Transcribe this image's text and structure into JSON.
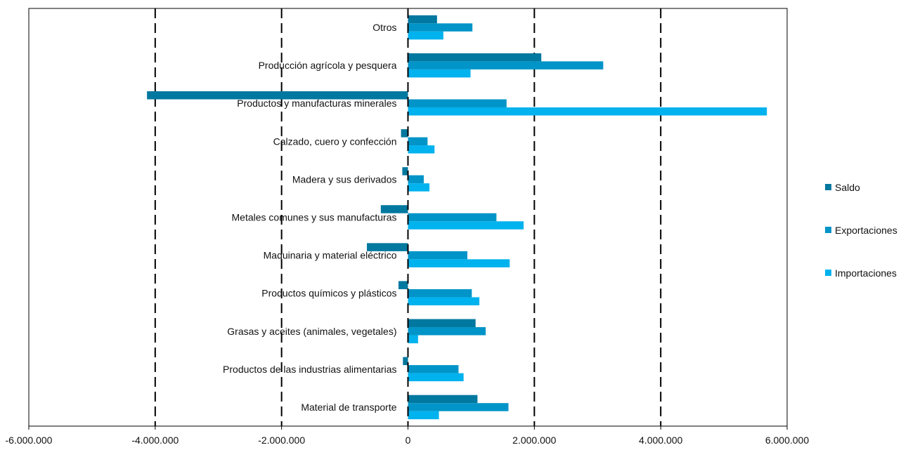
{
  "chart_data": {
    "type": "bar",
    "orientation": "horizontal",
    "categories": [
      "Otros",
      "Producción agrícola y pesquera",
      "Productos y manufacturas minerales",
      "Calzado, cuero y confección",
      "Madera y sus derivados",
      "Metales comunes y sus manufacturas",
      "Maquinaria y material eléctrico",
      "Productos químicos y plásticos",
      "Grasas y aceites (animales, vegetales)",
      "Productos de las industrias alimentarias",
      "Material de transporte"
    ],
    "series": [
      {
        "name": "Saldo",
        "color": "#00789f",
        "values": [
          460000,
          2110000,
          -4130000,
          -110000,
          -90000,
          -430000,
          -650000,
          -150000,
          1070000,
          -80000,
          1100000
        ]
      },
      {
        "name": "Exportaciones",
        "color": "#0094c8",
        "values": [
          1020000,
          3090000,
          1560000,
          310000,
          250000,
          1400000,
          940000,
          1010000,
          1230000,
          800000,
          1590000
        ]
      },
      {
        "name": "Importaciones",
        "color": "#00b2ee",
        "values": [
          560000,
          990000,
          5680000,
          420000,
          340000,
          1830000,
          1610000,
          1130000,
          160000,
          880000,
          490000
        ]
      }
    ],
    "xlim": [
      -6000000,
      6000000
    ],
    "x_ticks": [
      -6000000,
      -4000000,
      -2000000,
      0,
      2000000,
      4000000,
      6000000
    ],
    "x_tick_labels": [
      "-6.000.000",
      "-4.000.000",
      "-2.000.000",
      "0",
      "2.000.000",
      "4.000.000",
      "6.000.000"
    ],
    "grid": "vertical-dashed",
    "legend": "right",
    "title": "",
    "xlabel": "",
    "ylabel": ""
  }
}
